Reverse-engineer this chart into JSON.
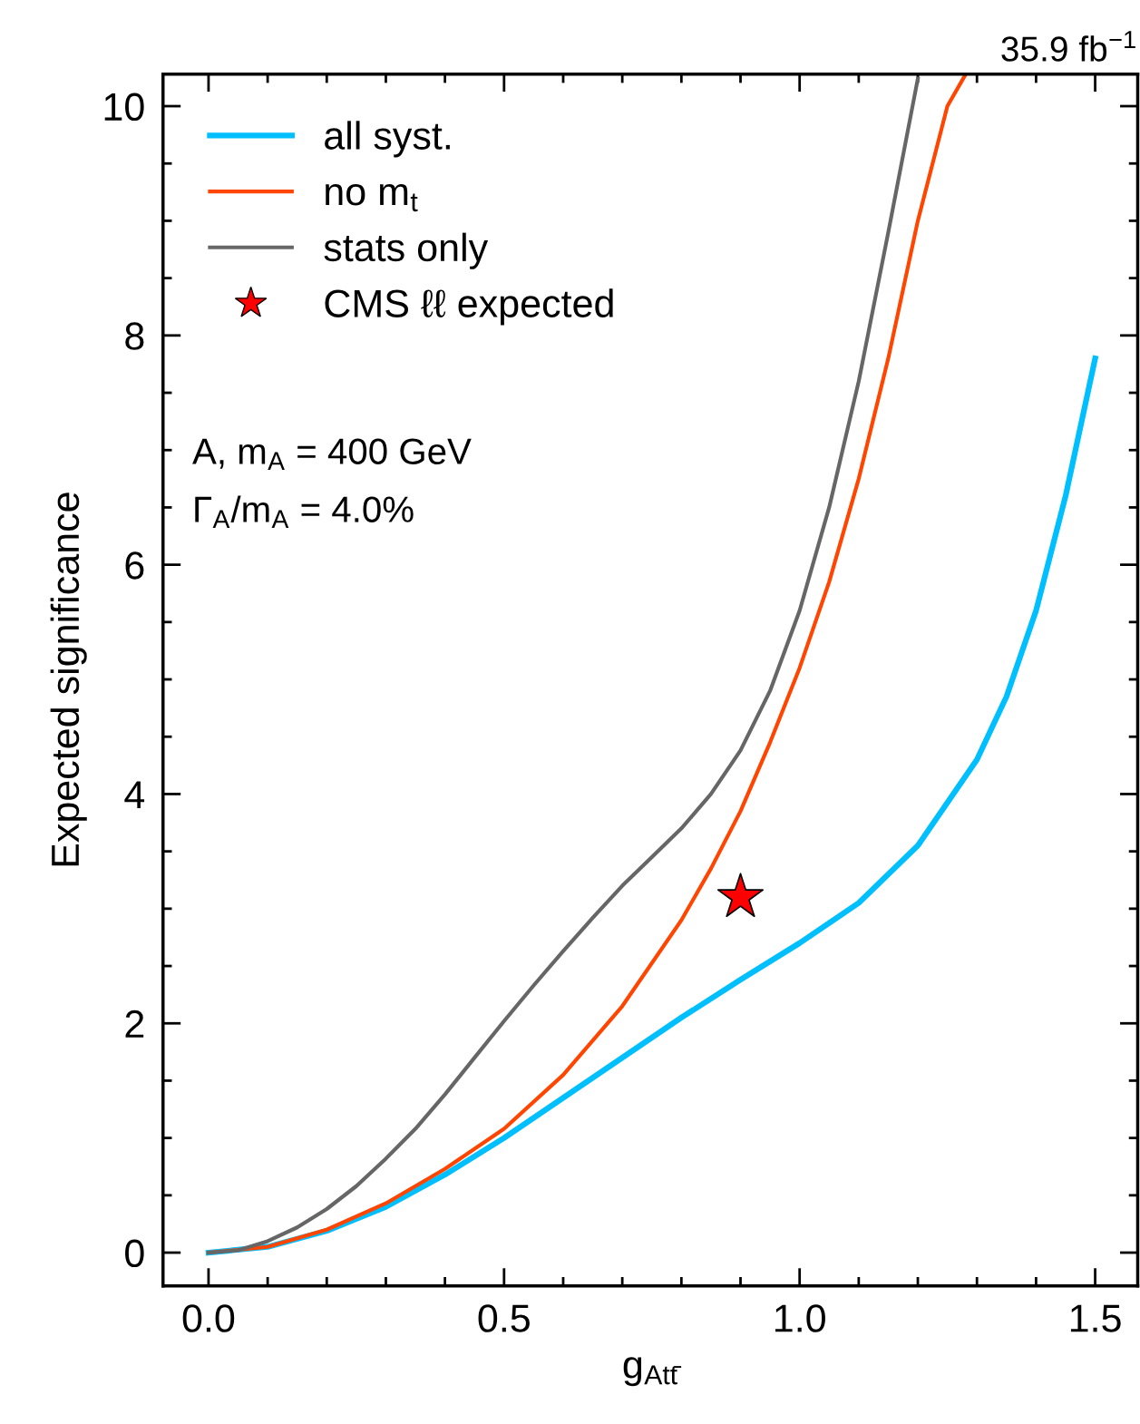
{
  "chart_data": {
    "type": "line",
    "title": "35.9 fb$^{−1}$",
    "xlabel": "g$_{Att̄}$",
    "ylabel": "Expected significance",
    "annotations": [
      "A, m$_{A}$ = 400 GeV",
      "Γ$_{A}$/m$_{A}$ = 4.0%"
    ],
    "series": [
      {
        "name": "all syst.",
        "color": "#00bfff",
        "x": [
          0,
          0.1,
          0.2,
          0.3,
          0.4,
          0.5,
          0.6,
          0.7,
          0.8,
          0.9,
          1.0,
          1.1,
          1.2,
          1.3,
          1.35,
          1.4,
          1.45,
          1.5
        ],
        "values": [
          0,
          0.05,
          0.19,
          0.4,
          0.68,
          1.0,
          1.35,
          1.7,
          2.05,
          2.38,
          2.7,
          3.05,
          3.55,
          4.3,
          4.85,
          5.6,
          6.6,
          7.8
        ]
      },
      {
        "name": "no m$_{t}$",
        "color": "#ff4500",
        "x": [
          0,
          0.1,
          0.2,
          0.3,
          0.4,
          0.5,
          0.6,
          0.7,
          0.8,
          0.85,
          0.9,
          0.95,
          1.0,
          1.05,
          1.1,
          1.15,
          1.2,
          1.25,
          1.28
        ],
        "values": [
          0,
          0.05,
          0.2,
          0.43,
          0.73,
          1.08,
          1.55,
          2.15,
          2.9,
          3.35,
          3.85,
          4.45,
          5.1,
          5.85,
          6.75,
          7.8,
          9.0,
          10.0,
          10.27
        ]
      },
      {
        "name": "stats only",
        "color": "#666666",
        "x": [
          0,
          0.05,
          0.1,
          0.15,
          0.2,
          0.25,
          0.3,
          0.35,
          0.4,
          0.45,
          0.5,
          0.55,
          0.6,
          0.65,
          0.7,
          0.75,
          0.8,
          0.85,
          0.9,
          0.95,
          1.0,
          1.05,
          1.1,
          1.15,
          1.2
        ],
        "values": [
          0,
          0.02,
          0.1,
          0.22,
          0.38,
          0.58,
          0.82,
          1.08,
          1.38,
          1.7,
          2.02,
          2.33,
          2.63,
          2.92,
          3.2,
          3.45,
          3.7,
          4.0,
          4.38,
          4.9,
          5.6,
          6.5,
          7.6,
          8.9,
          10.24
        ]
      },
      {
        "name": "CMS ℓℓ expected",
        "type": "scatter",
        "marker": "star",
        "color": "#ff0000",
        "x": [
          0.9
        ],
        "values": [
          3.1
        ]
      }
    ],
    "xlim": [
      -0.077,
      1.572
    ],
    "ylim": [
      -0.29,
      10.28
    ],
    "xticks": [
      {
        "value": 0,
        "label": "0.0"
      },
      0.5,
      {
        "value": 1,
        "label": "1.0"
      },
      1.5
    ],
    "yticks": [
      0,
      2,
      4,
      6,
      8,
      10
    ],
    "legend": "top left",
    "grid": false,
    "marker": "none",
    "line_style": "solid"
  }
}
